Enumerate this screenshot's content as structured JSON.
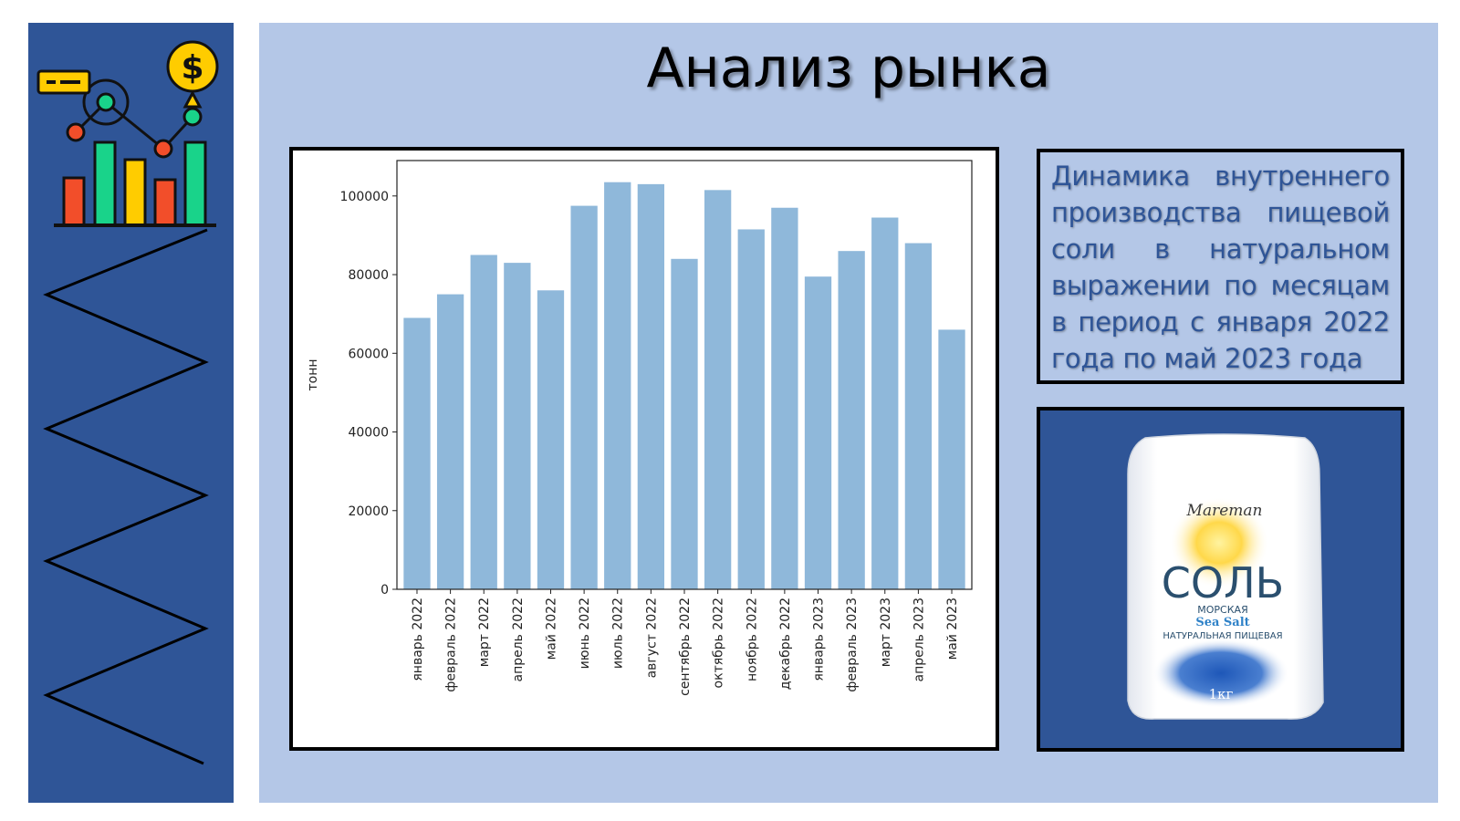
{
  "page": {
    "title": "Анализ рынка",
    "description": "Динамика внутреннего производства пищевой соли в натуральном выражении по месяцам в период с января 2022 года по май 2023 года"
  },
  "product": {
    "brand": "Mareman",
    "name": "СОЛЬ",
    "line1": "МОРСКАЯ",
    "line2": "Sea Salt",
    "line3": "НАТУРАЛЬНАЯ ПИЩЕВАЯ",
    "weight": "1кг"
  },
  "colors": {
    "left_panel": "#2f5597",
    "main_panel": "#b4c7e7",
    "bar": "#8fb8da",
    "description_text": "#2f5597"
  },
  "icons": [
    "analytics-chart-icon",
    "dollar-coin-icon",
    "zigzag-decoration"
  ],
  "chart_data": {
    "type": "bar",
    "categories": [
      "январь 2022",
      "февраль 2022",
      "март 2022",
      "апрель 2022",
      "май 2022",
      "июнь 2022",
      "июль 2022",
      "август 2022",
      "сентябрь 2022",
      "октябрь 2022",
      "ноябрь 2022",
      "декабрь 2022",
      "январь 2023",
      "февраль 2023",
      "март 2023",
      "апрель 2023",
      "май 2023"
    ],
    "values": [
      69000,
      75000,
      85000,
      83000,
      76000,
      97500,
      103500,
      103000,
      84000,
      101500,
      91500,
      97000,
      79500,
      86000,
      94500,
      88000,
      66000
    ],
    "ylabel": "тонн",
    "xlabel": "",
    "ylim": [
      0,
      109000
    ],
    "yticks": [
      0,
      20000,
      40000,
      60000,
      80000,
      100000
    ],
    "grid": false,
    "legend": "none"
  }
}
